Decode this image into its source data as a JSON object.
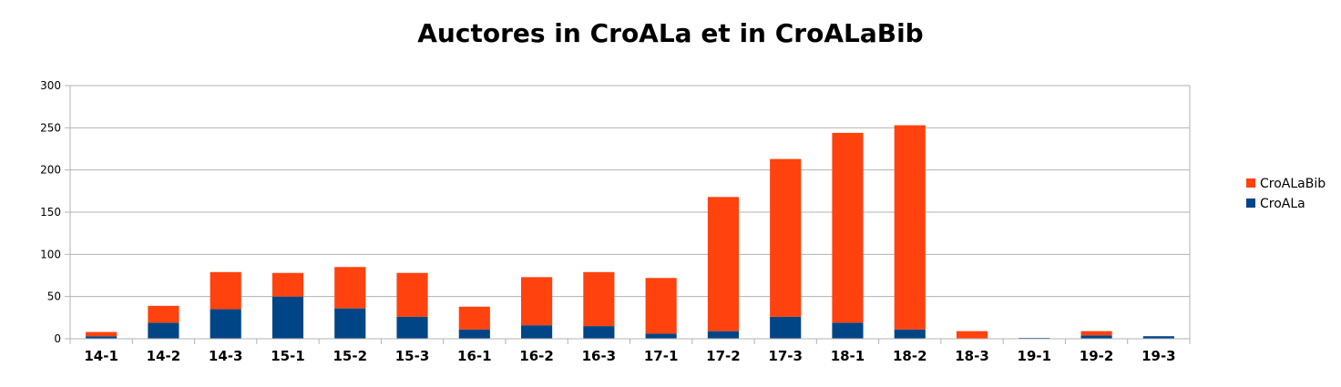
{
  "chart_data": {
    "type": "bar",
    "stacked": true,
    "title": "Auctores in CroALa et in CroALaBib",
    "xlabel": "",
    "ylabel": "",
    "ylim": [
      0,
      300
    ],
    "yticks": [
      0,
      50,
      100,
      150,
      200,
      250,
      300
    ],
    "grid": true,
    "legend_position": "right",
    "categories": [
      "14-1",
      "14-2",
      "14-3",
      "15-1",
      "15-2",
      "15-3",
      "16-1",
      "16-2",
      "16-3",
      "17-1",
      "17-2",
      "17-3",
      "18-1",
      "18-2",
      "18-3",
      "19-1",
      "19-2",
      "19-3"
    ],
    "series": [
      {
        "name": "CroALa",
        "color": "#004586",
        "values": [
          3,
          19,
          35,
          50,
          36,
          26,
          11,
          16,
          15,
          6,
          9,
          26,
          19,
          11,
          0,
          1,
          4,
          3
        ]
      },
      {
        "name": "CroALaBib",
        "color": "#ff420e",
        "values": [
          5,
          20,
          44,
          28,
          49,
          52,
          27,
          57,
          64,
          66,
          159,
          187,
          225,
          242,
          9,
          0,
          5,
          0
        ]
      }
    ],
    "legend": [
      "CroALaBib",
      "CroALa"
    ]
  }
}
